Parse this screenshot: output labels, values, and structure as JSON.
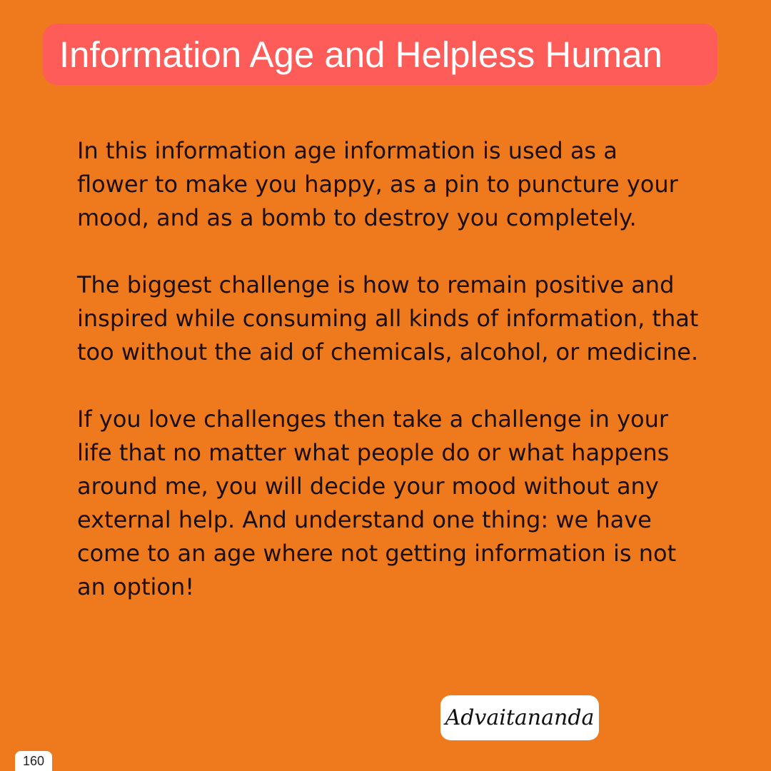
{
  "colors": {
    "background": "#ee7a1d",
    "title_banner": "#fd5c59",
    "title_text": "#ffffff",
    "body_text": "#1c0f0a",
    "signature_box": "#ffffff"
  },
  "title": "Information Age and Helpless Human",
  "paragraphs": [
    "In this information age information is used as a\nflower to make you happy, as a pin to puncture your\nmood, and as a bomb to destroy you completely.",
    "The biggest challenge is how to remain positive and\ninspired while consuming all kinds of information, that\ntoo without the aid of chemicals, alcohol, or medicine.",
    "If you love challenges then take a challenge in your\nlife that no matter what people do or what happens\naround me, you will decide your mood without any\nexternal help. And understand one thing: we have\ncome to an age where not getting information is not\nan option!"
  ],
  "signature": "Advaitananda",
  "page_number": "160"
}
